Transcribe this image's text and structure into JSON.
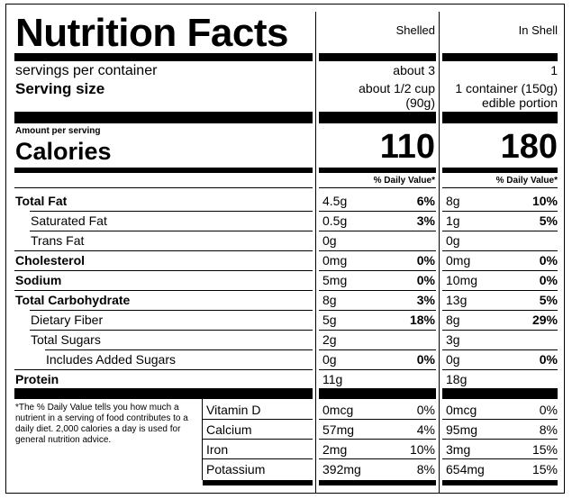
{
  "title": "Nutrition Facts",
  "columns": [
    {
      "header": "Shelled",
      "servings": "about 3",
      "serving_size": [
        "about 1/2 cup",
        "(90g)"
      ],
      "calories": "110"
    },
    {
      "header": "In Shell",
      "servings": "1",
      "serving_size": [
        "1 container (150g)",
        "edible portion"
      ],
      "calories": "180"
    }
  ],
  "servings_label": "servings per container",
  "serving_size_label": "Serving size",
  "amount_per_serving": "Amount per serving",
  "calories_label": "Calories",
  "dv_header": "% Daily Value*",
  "nutrients": [
    {
      "name": "Total Fat",
      "bold": true,
      "indent": 0,
      "c1": "4.5g",
      "p1": "6%",
      "c2": "8g",
      "p2": "10%"
    },
    {
      "name": "Saturated Fat",
      "bold": false,
      "indent": 1,
      "c1": "0.5g",
      "p1": "3%",
      "c2": "1g",
      "p2": "5%"
    },
    {
      "name": "Trans Fat",
      "bold": false,
      "indent": 1,
      "c1": "0g",
      "p1": "",
      "c2": "0g",
      "p2": ""
    },
    {
      "name": "Cholesterol",
      "bold": true,
      "indent": 0,
      "c1": "0mg",
      "p1": "0%",
      "c2": "0mg",
      "p2": "0%"
    },
    {
      "name": "Sodium",
      "bold": true,
      "indent": 0,
      "c1": "5mg",
      "p1": "0%",
      "c2": "10mg",
      "p2": "0%"
    },
    {
      "name": "Total Carbohydrate",
      "bold": true,
      "indent": 0,
      "c1": "8g",
      "p1": "3%",
      "c2": "13g",
      "p2": "5%"
    },
    {
      "name": "Dietary Fiber",
      "bold": false,
      "indent": 1,
      "c1": "5g",
      "p1": "18%",
      "c2": "8g",
      "p2": "29%"
    },
    {
      "name": "Total Sugars",
      "bold": false,
      "indent": 1,
      "c1": "2g",
      "p1": "",
      "c2": "3g",
      "p2": ""
    },
    {
      "name": "Includes Added Sugars",
      "bold": false,
      "indent": 2,
      "c1": "0g",
      "p1": "0%",
      "c2": "0g",
      "p2": "0%"
    },
    {
      "name": "Protein",
      "bold": true,
      "indent": 0,
      "c1": "11g",
      "p1": "",
      "c2": "18g",
      "p2": ""
    }
  ],
  "footnote": "*The % Daily Value tells you how much a nutrient in a serving of food contributes to a daily diet. 2,000 calories a day is used for general nutrition advice.",
  "vitamins": [
    {
      "name": "Vitamin D",
      "c1": "0mcg",
      "p1": "0%",
      "c2": "0mcg",
      "p2": "0%"
    },
    {
      "name": "Calcium",
      "c1": "57mg",
      "p1": "4%",
      "c2": "95mg",
      "p2": "8%"
    },
    {
      "name": "Iron",
      "c1": "2mg",
      "p1": "10%",
      "c2": "3mg",
      "p2": "15%"
    },
    {
      "name": "Potassium",
      "c1": "392mg",
      "p1": "8%",
      "c2": "654mg",
      "p2": "15%"
    }
  ]
}
